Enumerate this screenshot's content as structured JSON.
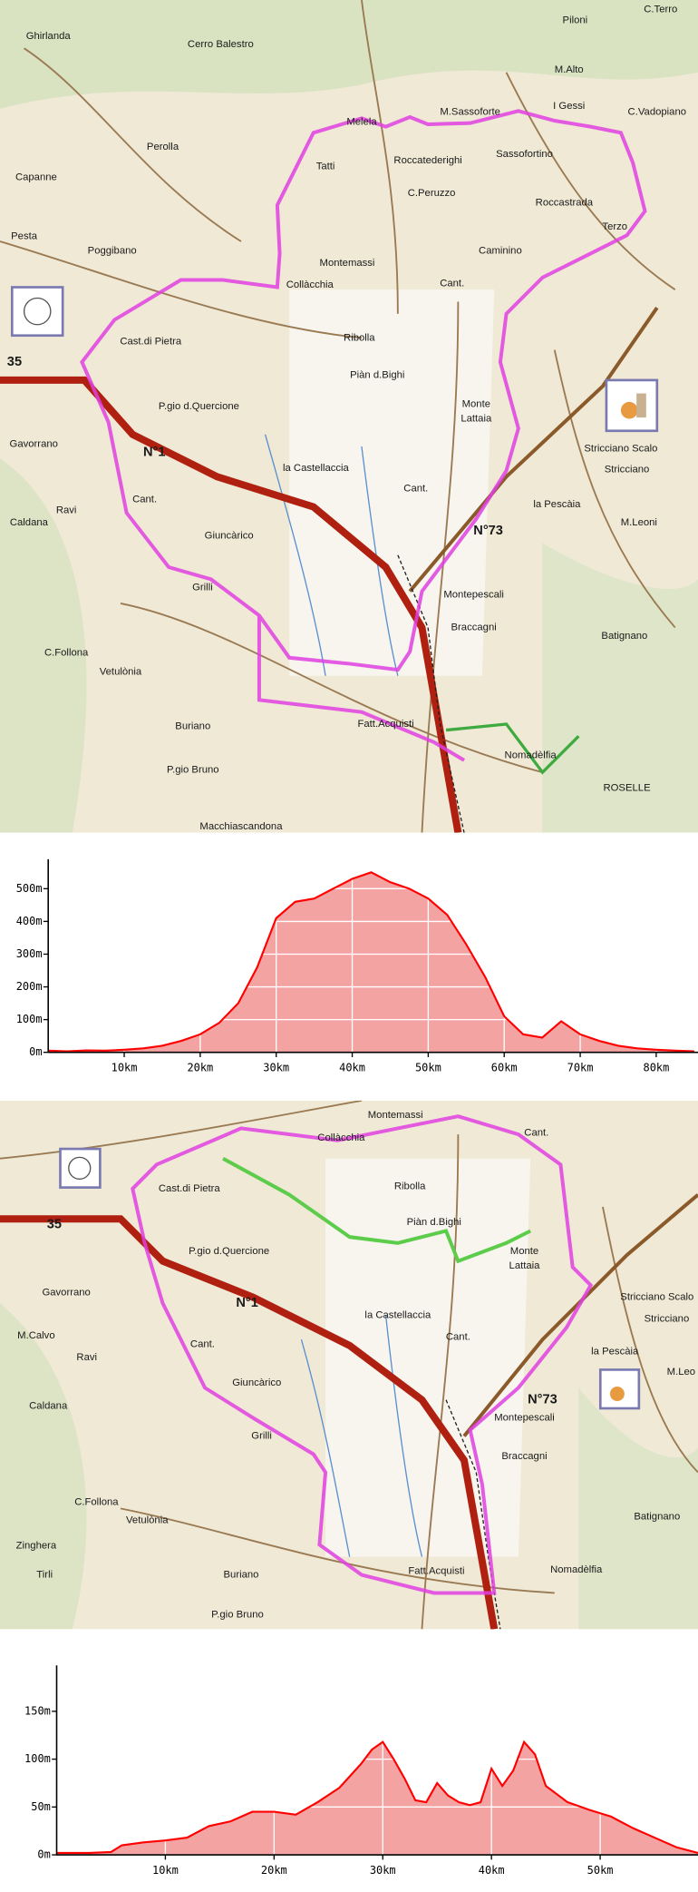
{
  "maps": [
    {
      "labels": [
        "Ghirlanda",
        "Cerro Balestro",
        "Piloni",
        "C.Terro",
        "M.Alto",
        "Capanne",
        "Perolla",
        "Pesta",
        "Poggibano",
        "Melela",
        "M.Sassoforte",
        "I Gessi",
        "C.Vadopiano",
        "Tatti",
        "Roccatederighi",
        "Sassofortino",
        "C.Peruzzo",
        "Roccastrada",
        "Terzo",
        "Montemassi",
        "Caminino",
        "Collàcchia",
        "Cant.",
        "Cast.di Pietra",
        "Ribolla",
        "Piàn d.Bighi",
        "P.gio d.Quercione",
        "Gavorrano",
        "Monte",
        "Lattaia",
        "Stricciano Scalo",
        "Stricciano",
        "la Castellaccia",
        "Cant.",
        "Cant.",
        "Ravi",
        "Giuncàrico",
        "la Pescàia",
        "M.Leoni",
        "Caldana",
        "Grilli",
        "Montepescali",
        "Braccagni",
        "C.Follona",
        "Vetulònia",
        "Batignano",
        "Buriano",
        "Fatt.Acquisti",
        "Nomadèlfia",
        "P.gio Bruno",
        "Macchiascandona",
        "ROSELLE",
        "35",
        "N°1",
        "N°73"
      ]
    },
    {
      "labels": [
        "Montemassi",
        "Collàcchia",
        "Cant.",
        "Cast.di Pietra",
        "Ribolla",
        "Piàn d.Bighi",
        "P.gio d.Quercione",
        "Monte",
        "Lattaia",
        "Gavorrano",
        "M.Calvo",
        "Ravi",
        "la Castellaccia",
        "Stricciano Scalo",
        "Stricciano",
        "Cant.",
        "Cant.",
        "la Pescàia",
        "M.Leo",
        "Giuncàrico",
        "Caldana",
        "Grilli",
        "Montepescali",
        "Braccagni",
        "C.Follona",
        "Vetulònia",
        "Batignano",
        "Zinghera",
        "Tirli",
        "Buriano",
        "Fatt.Acquisti",
        "Nomadèlfia",
        "P.gio Bruno",
        "35",
        "N°1",
        "N°73"
      ]
    }
  ],
  "chart_data": [
    {
      "type": "area",
      "color": "#ff0000",
      "fill": "#f4a3a3",
      "grid": true,
      "x": [
        0,
        2.5,
        5,
        7.5,
        10,
        12.5,
        15,
        17.5,
        20,
        22.5,
        25,
        27.5,
        30,
        32.5,
        35,
        37.5,
        40,
        42.5,
        45,
        47.5,
        50,
        52.5,
        55,
        57.5,
        60,
        62.5,
        65,
        67.5,
        70,
        72.5,
        75,
        77.5,
        80,
        82.5,
        85
      ],
      "values": [
        5,
        3,
        6,
        5,
        8,
        12,
        20,
        35,
        55,
        90,
        150,
        260,
        410,
        460,
        470,
        500,
        530,
        550,
        520,
        500,
        470,
        420,
        330,
        230,
        110,
        55,
        45,
        95,
        55,
        35,
        20,
        12,
        8,
        5,
        3
      ],
      "xlim": [
        0,
        85.5
      ],
      "ylim": [
        0,
        590
      ],
      "xticks": [
        {
          "value": 10,
          "label": "10km"
        },
        {
          "value": 20,
          "label": "20km"
        },
        {
          "value": 30,
          "label": "30km"
        },
        {
          "value": 40,
          "label": "40km"
        },
        {
          "value": 50,
          "label": "50km"
        },
        {
          "value": 60,
          "label": "60km"
        },
        {
          "value": 70,
          "label": "70km"
        },
        {
          "value": 80,
          "label": "80km"
        }
      ],
      "yticks": [
        {
          "value": 0,
          "label": "0m"
        },
        {
          "value": 100,
          "label": "100m"
        },
        {
          "value": 200,
          "label": "200m"
        },
        {
          "value": 300,
          "label": "300m"
        },
        {
          "value": 400,
          "label": "400m"
        },
        {
          "value": 500,
          "label": "500m"
        }
      ]
    },
    {
      "type": "area",
      "color": "#ff0000",
      "fill": "#f4a3a3",
      "grid": true,
      "x": [
        0,
        3,
        5,
        6,
        8,
        10,
        12,
        14,
        16,
        18,
        20,
        22,
        24,
        26,
        28,
        29,
        30,
        31,
        32,
        33,
        34,
        35,
        36,
        37,
        38,
        39,
        40,
        41,
        42,
        43,
        44,
        45,
        47,
        49,
        51,
        53,
        55,
        57,
        59
      ],
      "values": [
        2,
        2,
        3,
        10,
        13,
        15,
        18,
        30,
        35,
        45,
        45,
        42,
        55,
        70,
        95,
        110,
        118,
        100,
        80,
        57,
        55,
        75,
        62,
        55,
        52,
        55,
        90,
        72,
        88,
        118,
        105,
        72,
        55,
        47,
        40,
        28,
        18,
        8,
        2
      ],
      "xlim": [
        0,
        59
      ],
      "ylim": [
        0,
        198
      ],
      "xticks": [
        {
          "value": 10,
          "label": "10km"
        },
        {
          "value": 20,
          "label": "20km"
        },
        {
          "value": 30,
          "label": "30km"
        },
        {
          "value": 40,
          "label": "40km"
        },
        {
          "value": 50,
          "label": "50km"
        }
      ],
      "yticks": [
        {
          "value": 0,
          "label": "0m"
        },
        {
          "value": 50,
          "label": "50m"
        },
        {
          "value": 100,
          "label": "100m"
        },
        {
          "value": 150,
          "label": "150m"
        }
      ]
    }
  ]
}
